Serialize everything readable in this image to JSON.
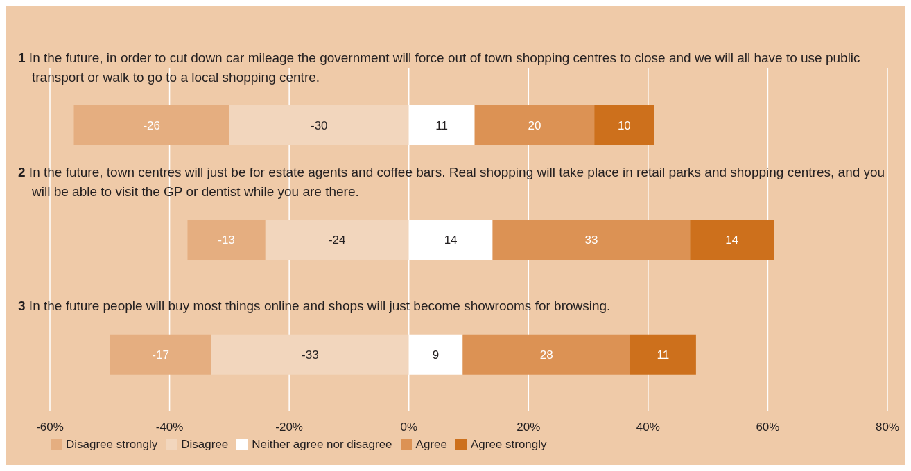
{
  "chart_data": {
    "type": "bar",
    "orientation": "horizontal",
    "stacked": true,
    "categories": [
      "1 In the future, in order to cut down car mileage the government will force out of town shopping centres to close and we will all have to use public transport or walk to go to a local shopping centre.",
      "2 In the future, town centres will just be for estate agents and coffee bars. Real shopping will take place in retail parks and shopping centres, and you will be able to visit the GP or dentist while you are there.",
      "3 In the future people will buy most things online and shops will just become showrooms for browsing."
    ],
    "series": [
      {
        "name": "Disagree strongly",
        "color": "#e5ae80",
        "values": [
          -26,
          -13,
          -17
        ]
      },
      {
        "name": "Disagree",
        "color": "#f2d6bd",
        "values": [
          -30,
          -24,
          -33
        ]
      },
      {
        "name": "Neither agree nor disagree",
        "color": "#ffffff",
        "values": [
          11,
          14,
          9
        ]
      },
      {
        "name": "Agree",
        "color": "#dc9254",
        "values": [
          20,
          33,
          28
        ]
      },
      {
        "name": "Agree strongly",
        "color": "#cd701c",
        "values": [
          10,
          14,
          11
        ]
      }
    ],
    "xlim": [
      -60,
      80
    ],
    "xticks": [
      {
        "value": -60,
        "label": "-60%"
      },
      {
        "value": -40,
        "label": "-40%"
      },
      {
        "value": -20,
        "label": "-20%"
      },
      {
        "value": 0,
        "label": "0%"
      },
      {
        "value": 20,
        "label": "20%"
      },
      {
        "value": 40,
        "label": "40%"
      },
      {
        "value": 60,
        "label": "60%"
      },
      {
        "value": 80,
        "label": "80%"
      }
    ],
    "grid": "x",
    "data_labels": true,
    "legend": "bottom"
  }
}
